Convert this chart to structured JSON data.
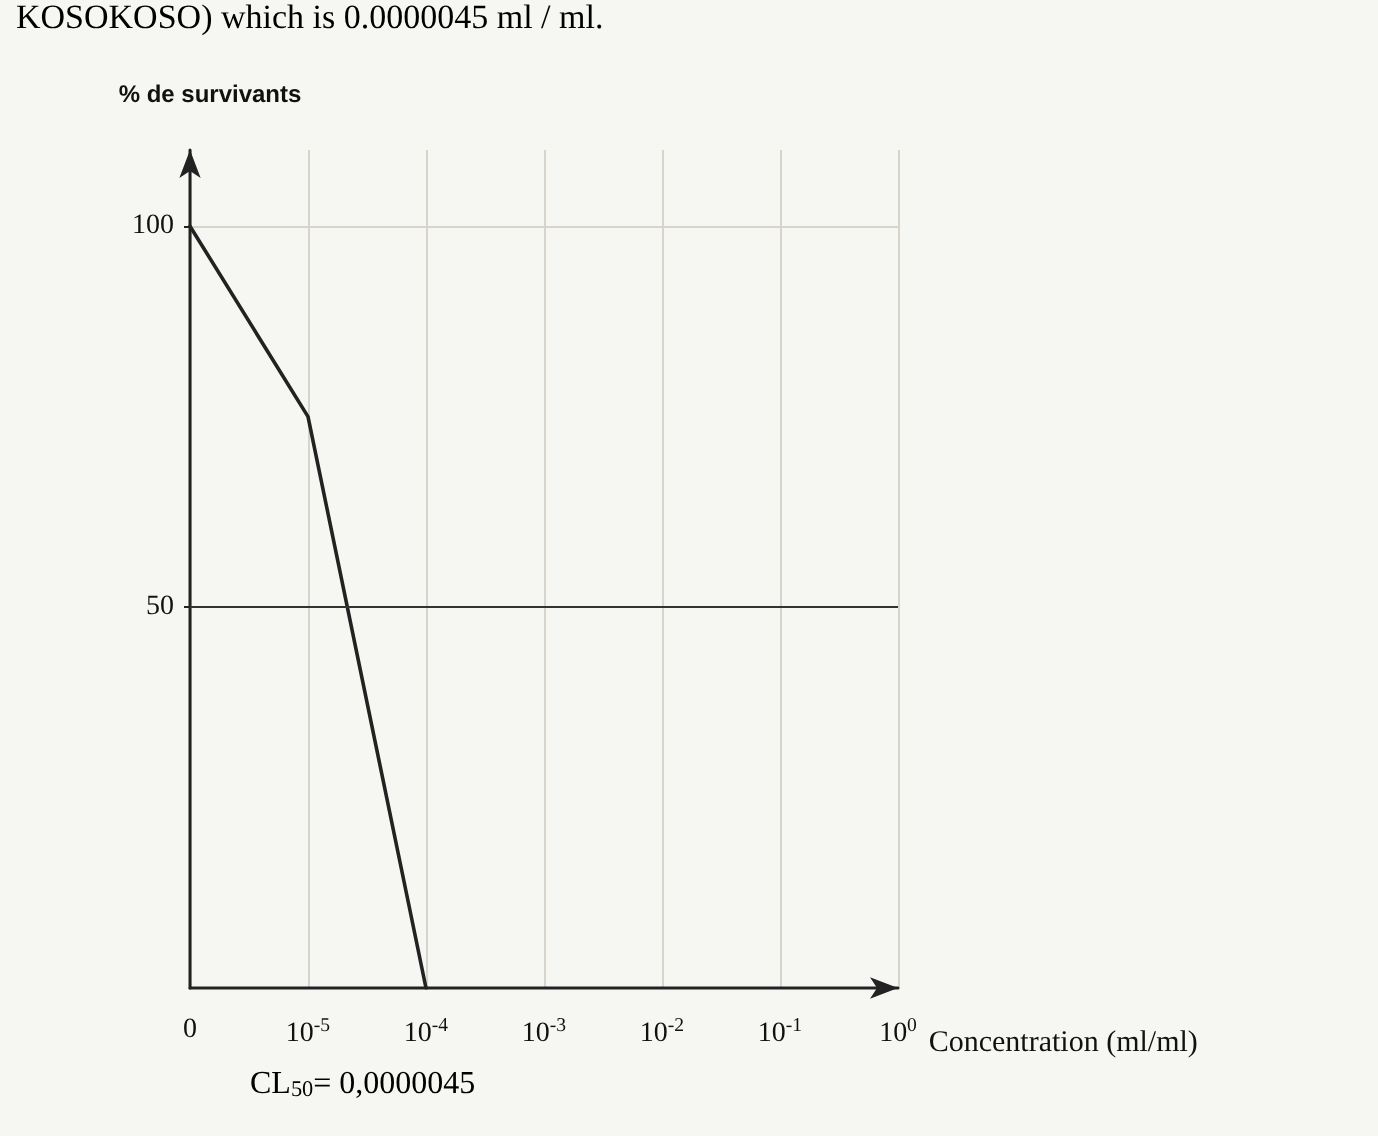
{
  "chart_data": {
    "type": "line",
    "xlabel": "Concentration (ml/ml)",
    "ylabel": "% de survivants",
    "annotations": [
      "KOSOKOSO) which is 0.0000045 ml / ml.",
      "CL$_{50}$= 0,0000045"
    ],
    "categories": [
      "0",
      "10$^{-5}$",
      "10$^{-4}$",
      "10$^{-3}$",
      "10$^{-2}$",
      "10$^{-1}$",
      "10$^{0}$"
    ],
    "series": [
      {
        "color": "#222222",
        "values": [
          100,
          75,
          0,
          null,
          null,
          null,
          null
        ]
      }
    ],
    "ylim": [
      0,
      110
    ],
    "yticks": [
      50,
      100
    ],
    "ref_lines": [
      {
        "axis": "y",
        "value": 50,
        "color": "#333333"
      }
    ],
    "grid": true,
    "marker": "none",
    "line_style": "solid"
  }
}
